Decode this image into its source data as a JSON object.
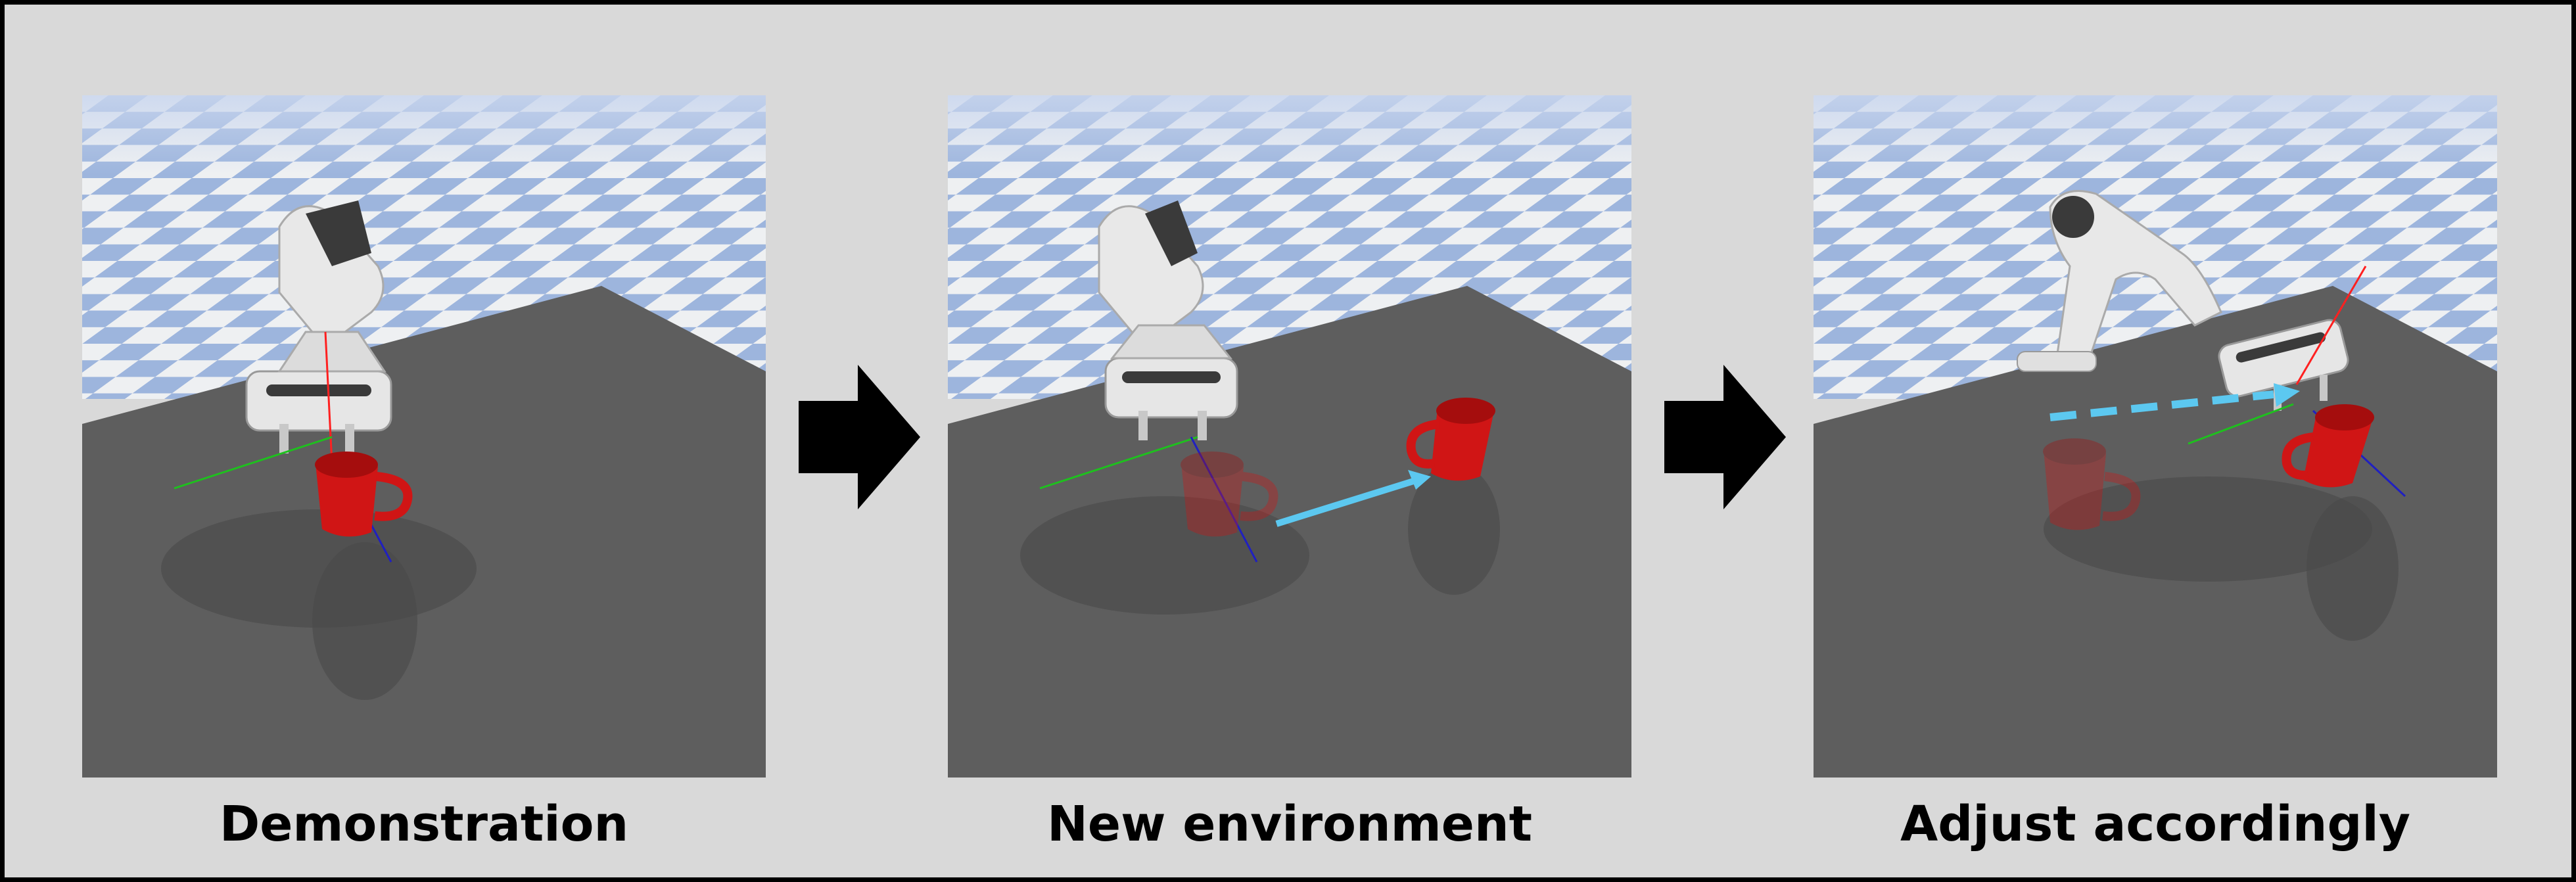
{
  "panels": [
    {
      "caption": "Demonstration"
    },
    {
      "caption": "New environment"
    },
    {
      "caption": "Adjust accordingly"
    }
  ],
  "colors": {
    "background": "#d9d9d9",
    "table": "#5e5e5e",
    "mug": "#d01515",
    "checker_blue": "#9db5dd",
    "checker_white": "#eef0f2",
    "motion_arrow": "#5cc8f0",
    "axis_red": "#ff2020",
    "axis_green": "#1ec01e",
    "axis_blue": "#2020c0"
  },
  "icons": [
    "right-arrow-icon",
    "robot-arm-icon",
    "mug-icon"
  ]
}
